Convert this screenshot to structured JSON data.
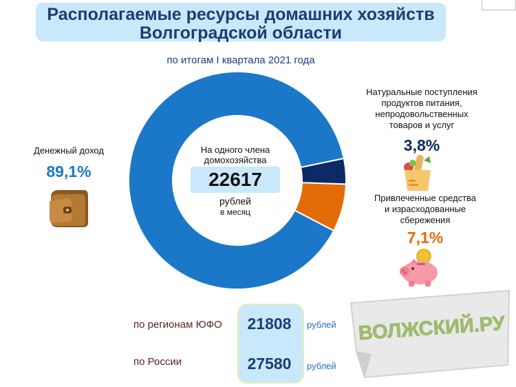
{
  "title": {
    "line1": "Располагаемые ресурсы домашних хозяйств",
    "line2": "Волгоградской области"
  },
  "subtitle": "по итогам I квартала 2021 года",
  "center": {
    "line1": "На одного члена",
    "line2": "домохозяйства",
    "value": "22617",
    "unit1": "рублей",
    "unit2": "в месяц"
  },
  "segments": {
    "money": {
      "label": "Денежный доход",
      "pct": "89,1%"
    },
    "natural": {
      "label_lines": [
        "Натуральные поступления",
        "продуктов питания,",
        "непродовольственных",
        "товаров и услуг"
      ],
      "pct": "3,8%"
    },
    "savings": {
      "label_lines": [
        "Привлеченные средства",
        "и израсходованные",
        "сбережения"
      ],
      "pct": "7,1%"
    }
  },
  "comparison": {
    "south": {
      "label": "по регионам ЮФО",
      "value": "21808",
      "unit": "рублей"
    },
    "russia": {
      "label": "по России",
      "value": "27580",
      "unit": "рублей"
    }
  },
  "watermark": "ВОЛЖСКИЙ.РУ",
  "colors": {
    "money": "#1b78c8",
    "natural": "#0c2a63",
    "savings": "#e36c09",
    "title_bg": "#c9e8fb",
    "title_text": "#1a3e73"
  },
  "icons": {
    "money": "wallet-icon",
    "natural": "grocery-bag-icon",
    "savings": "piggy-bank-icon"
  },
  "chart_data": {
    "type": "pie",
    "categories": [
      "Денежный доход",
      "Натуральные поступления продуктов питания, непродовольственных товаров и услуг",
      "Привлеченные средства и израсходованные сбережения"
    ],
    "values": [
      89.1,
      3.8,
      7.1
    ],
    "unit": "%"
  }
}
